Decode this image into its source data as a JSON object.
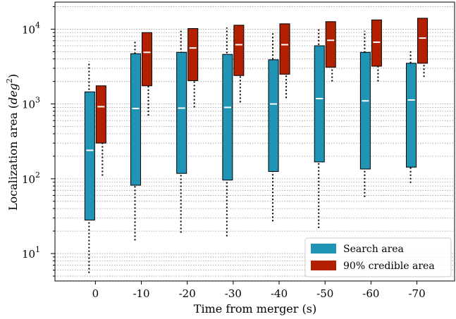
{
  "chart_data": {
    "type": "boxplot",
    "xlabel": "Time from merger (s)",
    "ylabel_prefix": "Localization area (",
    "ylabel_unit": "deg",
    "ylabel_exp": "2",
    "ylabel_suffix": ")",
    "yscale": "log",
    "ylim": [
      4.3,
      23000
    ],
    "ytick_labels": [
      {
        "base": "10",
        "exp": "1",
        "value": 10
      },
      {
        "base": "10",
        "exp": "2",
        "value": 100
      },
      {
        "base": "10",
        "exp": "3",
        "value": 1000
      },
      {
        "base": "10",
        "exp": "4",
        "value": 10000
      }
    ],
    "categories": [
      "0",
      "-10",
      "-20",
      "-30",
      "-40",
      "-50",
      "-60",
      "-70"
    ],
    "grid": "y-minor-dotted",
    "legend_position": "lower right",
    "series": [
      {
        "name": "Search area",
        "color": "#1f94b4",
        "boxes": [
          {
            "whislo": 5.5,
            "q1": 28,
            "med": 240,
            "q3": 1450,
            "whishi": 3700
          },
          {
            "whislo": 15,
            "q1": 82,
            "med": 870,
            "q3": 4700,
            "whishi": 7000
          },
          {
            "whislo": 19,
            "q1": 118,
            "med": 880,
            "q3": 4900,
            "whishi": 9500
          },
          {
            "whislo": 17,
            "q1": 96,
            "med": 900,
            "q3": 4600,
            "whishi": 10500
          },
          {
            "whislo": 27,
            "q1": 125,
            "med": 1000,
            "q3": 3900,
            "whishi": 8800
          },
          {
            "whislo": 22,
            "q1": 168,
            "med": 1180,
            "q3": 6000,
            "whishi": 10000
          },
          {
            "whislo": 57,
            "q1": 135,
            "med": 1100,
            "q3": 4900,
            "whishi": 9500
          },
          {
            "whislo": 88,
            "q1": 143,
            "med": 1130,
            "q3": 3500,
            "whishi": 5300
          }
        ]
      },
      {
        "name": "90% credible area",
        "color": "#b22000",
        "boxes": [
          {
            "whislo": 110,
            "q1": 300,
            "med": 920,
            "q3": 1750,
            "whishi": 1750
          },
          {
            "whislo": 700,
            "q1": 1750,
            "med": 4900,
            "q3": 9000,
            "whishi": 9000
          },
          {
            "whislo": 900,
            "q1": 2050,
            "med": 5600,
            "q3": 10200,
            "whishi": 10200
          },
          {
            "whislo": 1050,
            "q1": 2400,
            "med": 6200,
            "q3": 11300,
            "whishi": 11300
          },
          {
            "whislo": 1200,
            "q1": 2500,
            "med": 6200,
            "q3": 11800,
            "whishi": 11800
          },
          {
            "whislo": 2000,
            "q1": 3100,
            "med": 7100,
            "q3": 12600,
            "whishi": 12600
          },
          {
            "whislo": 2000,
            "q1": 3200,
            "med": 6700,
            "q3": 13300,
            "whishi": 13300
          },
          {
            "whislo": 2300,
            "q1": 3500,
            "med": 7600,
            "q3": 14000,
            "whishi": 14000
          }
        ]
      }
    ]
  }
}
